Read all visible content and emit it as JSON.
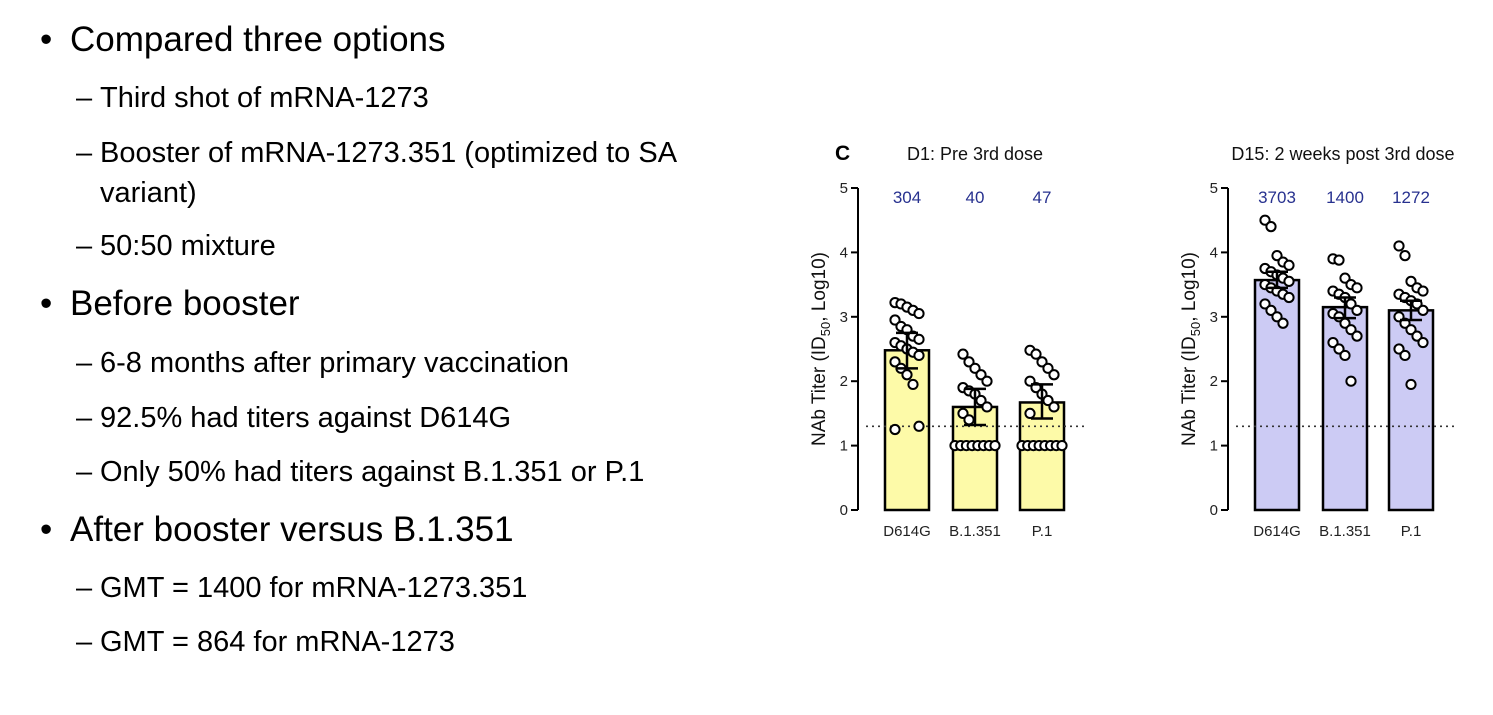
{
  "bullets": [
    {
      "text": "Compared three options",
      "sub": [
        "Third shot of mRNA-1273",
        "Booster of mRNA-1273.351 (optimized to SA",
        "variant)",
        "50:50 mixture"
      ]
    },
    {
      "text": "Before booster",
      "sub": [
        "6-8 months after primary vaccination",
        "92.5% had titers against D614G",
        "Only 50% had titers against B.1.351 or P.1"
      ]
    },
    {
      "text": "After booster versus B.1.351",
      "sub": [
        "GMT = 1400 for mRNA-1273.351",
        "GMT = 864 for mRNA-1273"
      ]
    }
  ],
  "panel_letter": "C",
  "chart_data": [
    {
      "type": "bar",
      "title": "D1: Pre 3rd dose",
      "categories": [
        "D614G",
        "B.1.351",
        "P.1"
      ],
      "values": [
        2.48,
        1.6,
        1.67
      ],
      "errors": [
        [
          2.2,
          2.75
        ],
        [
          1.32,
          1.88
        ],
        [
          1.42,
          1.95
        ]
      ],
      "gmt_labels": [
        "304",
        "40",
        "47"
      ],
      "ylabel_prefix": "NAb Titer (ID",
      "ylabel_sub": "50",
      "ylabel_suffix": ", Log10)",
      "ylim": [
        0,
        5
      ],
      "yticks": [
        "0",
        "1",
        "2",
        "3",
        "4",
        "5"
      ],
      "threshold": 1.3,
      "bar_color": "#fdfaa8",
      "points": [
        [
          3.22,
          3.2,
          3.15,
          3.1,
          3.05,
          2.95,
          2.85,
          2.8,
          2.7,
          2.65,
          2.6,
          2.55,
          2.5,
          2.45,
          2.4,
          2.3,
          2.2,
          2.1,
          1.95,
          1.3,
          1.25
        ],
        [
          2.42,
          2.3,
          2.2,
          2.1,
          2.0,
          1.9,
          1.85,
          1.8,
          1.7,
          1.6,
          1.5,
          1.4,
          1.0,
          1.0,
          1.0,
          1.0,
          1.0,
          1.0,
          1.0,
          1.0
        ],
        [
          2.48,
          2.42,
          2.3,
          2.2,
          2.1,
          2.0,
          1.9,
          1.8,
          1.7,
          1.6,
          1.5,
          1.0,
          1.0,
          1.0,
          1.0,
          1.0,
          1.0,
          1.0,
          1.0
        ]
      ]
    },
    {
      "type": "bar",
      "title": "D15: 2 weeks post 3rd dose",
      "categories": [
        "D614G",
        "B.1.351",
        "P.1"
      ],
      "values": [
        3.57,
        3.15,
        3.1
      ],
      "errors": [
        [
          3.45,
          3.7
        ],
        [
          2.98,
          3.3
        ],
        [
          2.95,
          3.25
        ]
      ],
      "gmt_labels": [
        "3703",
        "1400",
        "1272"
      ],
      "ylabel_prefix": "NAb Titer (ID",
      "ylabel_sub": "50",
      "ylabel_suffix": ", Log10)",
      "ylim": [
        0,
        5
      ],
      "yticks": [
        "0",
        "1",
        "2",
        "3",
        "4",
        "5"
      ],
      "threshold": 1.3,
      "bar_color": "#cccbf4",
      "points": [
        [
          4.5,
          4.4,
          3.95,
          3.85,
          3.8,
          3.75,
          3.7,
          3.65,
          3.6,
          3.55,
          3.5,
          3.45,
          3.4,
          3.35,
          3.3,
          3.2,
          3.1,
          3.0,
          2.9
        ],
        [
          3.9,
          3.88,
          3.6,
          3.5,
          3.45,
          3.4,
          3.35,
          3.3,
          3.2,
          3.1,
          3.05,
          3.0,
          2.9,
          2.8,
          2.7,
          2.6,
          2.5,
          2.4,
          2.0
        ],
        [
          4.1,
          3.95,
          3.55,
          3.45,
          3.4,
          3.35,
          3.3,
          3.25,
          3.2,
          3.1,
          3.0,
          2.9,
          2.8,
          2.7,
          2.6,
          2.5,
          2.4,
          1.95
        ]
      ]
    }
  ]
}
